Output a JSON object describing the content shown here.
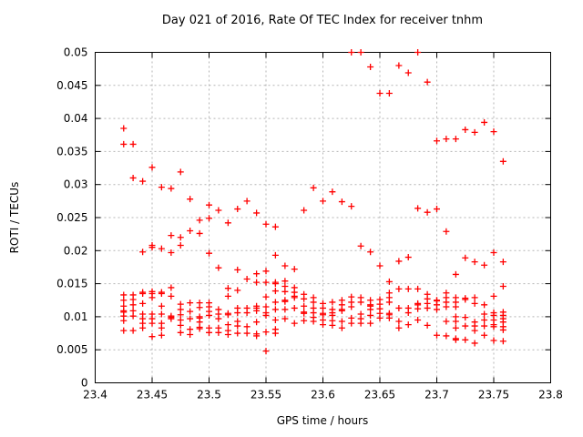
{
  "chart_data": {
    "type": "scatter",
    "title": "Day 021 of 2016, Rate Of TEC Index for receiver tnhm",
    "xlabel": "GPS time / hours",
    "ylabel": "ROTI / TECUs",
    "xlim": [
      23.4,
      23.8
    ],
    "ylim": [
      0,
      0.05
    ],
    "grid": true,
    "legend": "none",
    "marker": "plus",
    "marker_color": "#ff0000",
    "frame_color": "#000000",
    "grid_color": "#b4b4b4",
    "background_color": "#ffffff",
    "xticks": {
      "values": [
        23.4,
        23.45,
        23.5,
        23.55,
        23.6,
        23.65,
        23.7,
        23.75,
        23.8
      ],
      "labels": [
        "23.4",
        "23.45",
        "23.5",
        "23.55",
        "23.6",
        "23.65",
        "23.7",
        "23.75",
        "23.8"
      ]
    },
    "yticks": {
      "values": [
        0,
        0.005,
        0.01,
        0.015,
        0.02,
        0.025,
        0.03,
        0.035,
        0.04,
        0.045,
        0.05
      ],
      "labels": [
        "0",
        "0.005",
        "0.01",
        "0.015",
        "0.02",
        "0.025",
        "0.03",
        "0.035",
        "0.04",
        "0.045",
        "0.05"
      ]
    },
    "series": [
      {
        "name": "ROTI",
        "columns": [
          {
            "t": 23.425,
            "values": [
              0.0385,
              0.0361,
              0.0133,
              0.0125,
              0.0116,
              0.0109,
              0.0107,
              0.0101,
              0.0094,
              0.0079
            ]
          },
          {
            "t": 23.4333,
            "values": [
              0.0361,
              0.031,
              0.0133,
              0.0126,
              0.0118,
              0.0109,
              0.0101,
              0.0079
            ]
          },
          {
            "t": 23.4417,
            "values": [
              0.0305,
              0.0198,
              0.0137,
              0.0135,
              0.012,
              0.0104,
              0.0097,
              0.009,
              0.0083
            ]
          },
          {
            "t": 23.45,
            "values": [
              0.0326,
              0.0208,
              0.0205,
              0.0138,
              0.0135,
              0.0129,
              0.0104,
              0.0097,
              0.009,
              0.007
            ]
          },
          {
            "t": 23.4583,
            "values": [
              0.0296,
              0.0203,
              0.0137,
              0.0135,
              0.0116,
              0.0104,
              0.009,
              0.0083,
              0.0072
            ]
          },
          {
            "t": 23.4667,
            "values": [
              0.0294,
              0.0223,
              0.0197,
              0.0144,
              0.0131,
              0.0101,
              0.0099,
              0.0097
            ]
          },
          {
            "t": 23.475,
            "values": [
              0.0319,
              0.022,
              0.0208,
              0.0119,
              0.0111,
              0.0103,
              0.0095,
              0.0087,
              0.0076
            ]
          },
          {
            "t": 23.4833,
            "values": [
              0.0278,
              0.023,
              0.0121,
              0.0108,
              0.0097,
              0.0081,
              0.0073
            ]
          },
          {
            "t": 23.4917,
            "values": [
              0.0246,
              0.0226,
              0.0121,
              0.0114,
              0.01,
              0.0098,
              0.0092,
              0.0084,
              0.0082
            ]
          },
          {
            "t": 23.5,
            "values": [
              0.0269,
              0.0249,
              0.0196,
              0.0121,
              0.0115,
              0.0108,
              0.0102,
              0.0083,
              0.0076
            ]
          },
          {
            "t": 23.5083,
            "values": [
              0.0261,
              0.0174,
              0.0111,
              0.0104,
              0.0097,
              0.0083,
              0.0076
            ]
          },
          {
            "t": 23.5167,
            "values": [
              0.0242,
              0.0143,
              0.0131,
              0.0105,
              0.0103,
              0.0088,
              0.0079,
              0.0073
            ]
          },
          {
            "t": 23.525,
            "values": [
              0.0263,
              0.0171,
              0.014,
              0.0113,
              0.0106,
              0.0093,
              0.0086,
              0.0075
            ]
          },
          {
            "t": 23.5333,
            "values": [
              0.0275,
              0.0157,
              0.0113,
              0.0106,
              0.0085,
              0.0075
            ]
          },
          {
            "t": 23.5417,
            "values": [
              0.0257,
              0.0165,
              0.0152,
              0.0116,
              0.0113,
              0.0109,
              0.0092,
              0.0074,
              0.0071
            ]
          },
          {
            "t": 23.55,
            "values": [
              0.024,
              0.0169,
              0.0152,
              0.013,
              0.0115,
              0.0106,
              0.0102,
              0.0077,
              0.0048
            ]
          },
          {
            "t": 23.5583,
            "values": [
              0.0236,
              0.0193,
              0.0152,
              0.015,
              0.0139,
              0.0122,
              0.0111,
              0.0095,
              0.0081,
              0.0075
            ]
          },
          {
            "t": 23.5667,
            "values": [
              0.0177,
              0.0154,
              0.0146,
              0.0138,
              0.0125,
              0.0123,
              0.0111,
              0.0097
            ]
          },
          {
            "t": 23.575,
            "values": [
              0.0172,
              0.0144,
              0.0137,
              0.0131,
              0.0129,
              0.0113,
              0.009
            ]
          },
          {
            "t": 23.5833,
            "values": [
              0.0261,
              0.0134,
              0.0127,
              0.0116,
              0.0107,
              0.0105,
              0.0094
            ]
          },
          {
            "t": 23.5917,
            "values": [
              0.0295,
              0.0129,
              0.0122,
              0.0113,
              0.0106,
              0.0099,
              0.0093
            ]
          },
          {
            "t": 23.6,
            "values": [
              0.0275,
              0.012,
              0.0113,
              0.0105,
              0.0103,
              0.0095,
              0.0088
            ]
          },
          {
            "t": 23.6083,
            "values": [
              0.0289,
              0.0122,
              0.0111,
              0.0106,
              0.0102,
              0.0094,
              0.0087
            ]
          },
          {
            "t": 23.6167,
            "values": [
              0.0274,
              0.0125,
              0.0118,
              0.0111,
              0.0109,
              0.0093,
              0.0083
            ]
          },
          {
            "t": 23.625,
            "values": [
              0.05,
              0.0267,
              0.013,
              0.0122,
              0.0115,
              0.0098,
              0.009
            ]
          },
          {
            "t": 23.6333,
            "values": [
              0.05,
              0.0207,
              0.0129,
              0.0122,
              0.0104,
              0.0097,
              0.009
            ]
          },
          {
            "t": 23.6417,
            "values": [
              0.0478,
              0.0198,
              0.0125,
              0.0118,
              0.0116,
              0.0111,
              0.0102,
              0.009
            ]
          },
          {
            "t": 23.65,
            "values": [
              0.0438,
              0.0177,
              0.0126,
              0.0119,
              0.0112,
              0.0105,
              0.0098
            ]
          },
          {
            "t": 23.6583,
            "values": [
              0.0438,
              0.0153,
              0.0136,
              0.0129,
              0.0122,
              0.0105,
              0.0103,
              0.0098
            ]
          },
          {
            "t": 23.6667,
            "values": [
              0.048,
              0.0184,
              0.0142,
              0.0113,
              0.0093,
              0.0083
            ]
          },
          {
            "t": 23.675,
            "values": [
              0.0469,
              0.019,
              0.0142,
              0.0113,
              0.0106,
              0.0088
            ]
          },
          {
            "t": 23.6833,
            "values": [
              0.05,
              0.0264,
              0.0142,
              0.012,
              0.0118,
              0.0112,
              0.0095
            ]
          },
          {
            "t": 23.6917,
            "values": [
              0.0455,
              0.0258,
              0.0134,
              0.0127,
              0.012,
              0.0113,
              0.0087
            ]
          },
          {
            "t": 23.7,
            "values": [
              0.0366,
              0.0263,
              0.0125,
              0.0124,
              0.0118,
              0.0111,
              0.0072
            ]
          },
          {
            "t": 23.7083,
            "values": [
              0.0369,
              0.0229,
              0.0136,
              0.0129,
              0.0122,
              0.0115,
              0.0093,
              0.0071
            ]
          },
          {
            "t": 23.7167,
            "values": [
              0.0369,
              0.0164,
              0.0129,
              0.0122,
              0.0115,
              0.01,
              0.0093,
              0.0083,
              0.0067,
              0.0065
            ]
          },
          {
            "t": 23.725,
            "values": [
              0.0383,
              0.0189,
              0.0128,
              0.0126,
              0.0099,
              0.0086,
              0.0065
            ]
          },
          {
            "t": 23.7333,
            "values": [
              0.0379,
              0.0183,
              0.0129,
              0.012,
              0.0092,
              0.0086,
              0.0079,
              0.006
            ]
          },
          {
            "t": 23.7417,
            "values": [
              0.0394,
              0.0178,
              0.0118,
              0.0104,
              0.0095,
              0.0086,
              0.0072
            ]
          },
          {
            "t": 23.75,
            "values": [
              0.038,
              0.0197,
              0.0131,
              0.0106,
              0.0102,
              0.0095,
              0.0088,
              0.0085,
              0.0064
            ]
          },
          {
            "t": 23.7583,
            "values": [
              0.0335,
              0.0183,
              0.0146,
              0.0107,
              0.0102,
              0.0097,
              0.0092,
              0.0085,
              0.008,
              0.0063
            ]
          }
        ]
      }
    ]
  }
}
